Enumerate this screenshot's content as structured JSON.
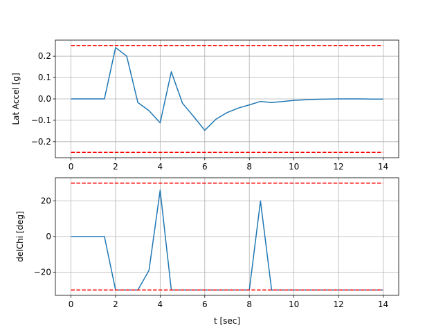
{
  "chart_data": [
    {
      "type": "line",
      "title": "",
      "xlabel": "",
      "ylabel": "Lat Accel [g]",
      "xlim": [
        -0.7,
        14.7
      ],
      "ylim": [
        -0.275,
        0.275
      ],
      "xticks": [
        0,
        2,
        4,
        6,
        8,
        10,
        12,
        14
      ],
      "xtick_labels": [
        "0",
        "2",
        "4",
        "6",
        "8",
        "10",
        "12",
        "14"
      ],
      "yticks": [
        -0.2,
        -0.1,
        0.0,
        0.1,
        0.2
      ],
      "ytick_labels": [
        "−0.2",
        "−0.1",
        "0.0",
        "0.1",
        "0.2"
      ],
      "grid": true,
      "series": [
        {
          "color": "#1f77b4",
          "style": "solid",
          "x": [
            0,
            0.5,
            1,
            1.5,
            2,
            2.5,
            3,
            3.5,
            4,
            4.5,
            5,
            5.5,
            6,
            6.5,
            7,
            7.5,
            8,
            8.5,
            9,
            9.5,
            10,
            10.5,
            11,
            11.5,
            12,
            12.5,
            13,
            13.5,
            14
          ],
          "y": [
            0,
            0,
            0,
            0,
            0.24,
            0.2,
            -0.017,
            -0.055,
            -0.112,
            0.127,
            -0.02,
            -0.082,
            -0.147,
            -0.095,
            -0.064,
            -0.043,
            -0.028,
            -0.012,
            -0.017,
            -0.012,
            -0.007,
            -0.004,
            -0.002,
            -0.001,
            0,
            0,
            0,
            -0.001,
            -0.001
          ]
        },
        {
          "color": "#ff0000",
          "style": "dashed",
          "x": [
            0,
            14
          ],
          "y": [
            0.25,
            0.25
          ]
        },
        {
          "color": "#ff0000",
          "style": "dashed",
          "x": [
            0,
            14
          ],
          "y": [
            -0.25,
            -0.25
          ]
        }
      ]
    },
    {
      "type": "line",
      "title": "",
      "xlabel": "t [sec]",
      "ylabel": "delChi [deg]",
      "xlim": [
        -0.7,
        14.7
      ],
      "ylim": [
        -33,
        33
      ],
      "xticks": [
        0,
        2,
        4,
        6,
        8,
        10,
        12,
        14
      ],
      "xtick_labels": [
        "0",
        "2",
        "4",
        "6",
        "8",
        "10",
        "12",
        "14"
      ],
      "yticks": [
        -20,
        0,
        20
      ],
      "ytick_labels": [
        "−20",
        "0",
        "20"
      ],
      "grid": true,
      "series": [
        {
          "color": "#1f77b4",
          "style": "solid",
          "x": [
            0,
            0.5,
            1,
            1.5,
            2,
            2.5,
            3,
            3.5,
            4,
            4.5,
            5,
            5.5,
            6,
            6.5,
            7,
            7.5,
            8,
            8.5,
            9,
            9.5,
            10,
            10.5,
            11,
            11.5,
            12,
            12.5,
            13,
            13.5,
            14
          ],
          "y": [
            0,
            0,
            0,
            0,
            -30,
            -30,
            -30,
            -19,
            26,
            -30,
            -30,
            -30,
            -30,
            -30,
            -30,
            -30,
            -30,
            20,
            -30,
            -30,
            -30,
            -30,
            -30,
            -30,
            -30,
            -30,
            -30,
            -30,
            -30
          ]
        },
        {
          "color": "#ff0000",
          "style": "dashed",
          "x": [
            0,
            14
          ],
          "y": [
            30,
            30
          ]
        },
        {
          "color": "#ff0000",
          "style": "dashed",
          "x": [
            0,
            14
          ],
          "y": [
            -30,
            -30
          ]
        }
      ]
    }
  ]
}
